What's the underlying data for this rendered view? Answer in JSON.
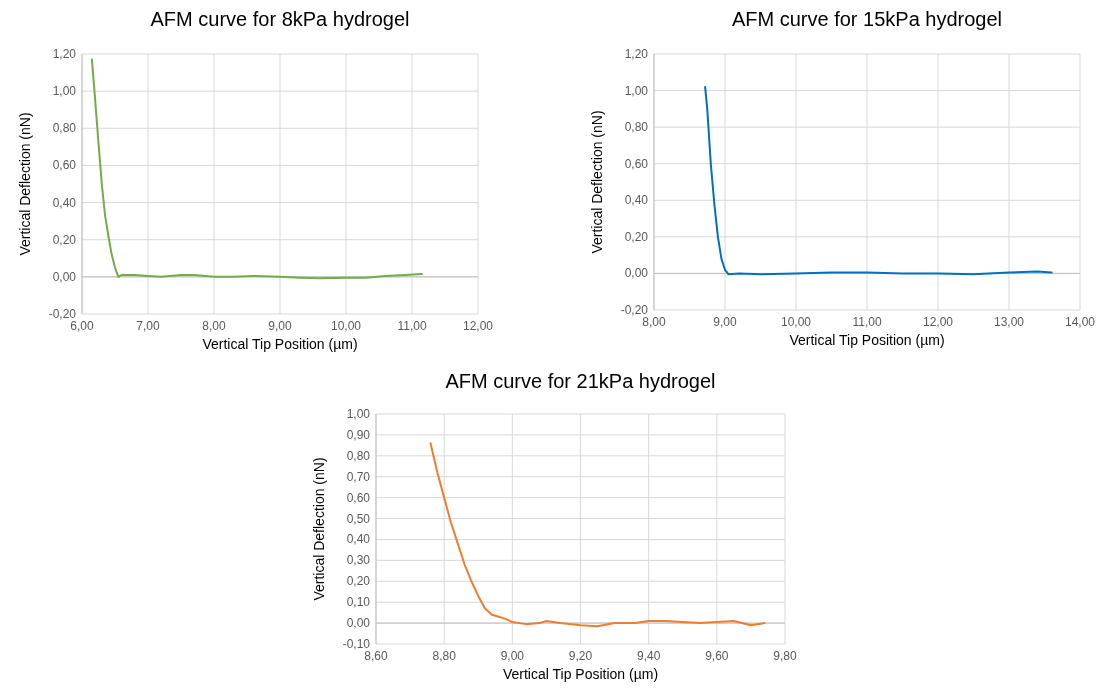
{
  "chart_data": [
    {
      "type": "line",
      "title": "AFM curve for 8kPa hydrogel",
      "xlabel": "Vertical Tip Position (µm)",
      "ylabel": "Vertical Deflection (nN)",
      "grid": true,
      "xlim": [
        6,
        12
      ],
      "ylim": [
        -0.2,
        1.2
      ],
      "xticks": [
        {
          "value": 6,
          "label": "6,00"
        },
        {
          "value": 7,
          "label": "7,00"
        },
        {
          "value": 8,
          "label": "8,00"
        },
        {
          "value": 9,
          "label": "9,00"
        },
        {
          "value": 10,
          "label": "10,00"
        },
        {
          "value": 11,
          "label": "11,00"
        },
        {
          "value": 12,
          "label": "12,00"
        }
      ],
      "yticks": [
        {
          "value": -0.2,
          "label": "-0,20"
        },
        {
          "value": 0,
          "label": "0,00"
        },
        {
          "value": 0.2,
          "label": "0,20"
        },
        {
          "value": 0.4,
          "label": "0,40"
        },
        {
          "value": 0.6,
          "label": "0,60"
        },
        {
          "value": 0.8,
          "label": "0,80"
        },
        {
          "value": 1,
          "label": "1,00"
        },
        {
          "value": 1.2,
          "label": "1,20"
        }
      ],
      "x": [
        6.15,
        6.2,
        6.25,
        6.3,
        6.35,
        6.4,
        6.45,
        6.5,
        6.55,
        6.6,
        6.8,
        7.0,
        7.2,
        7.5,
        7.7,
        8.0,
        8.3,
        8.6,
        9.0,
        9.3,
        9.6,
        10.0,
        10.3,
        10.6,
        10.9,
        11.15
      ],
      "series": [
        {
          "color": "#70ad47",
          "values": [
            1.17,
            0.95,
            0.72,
            0.5,
            0.33,
            0.22,
            0.12,
            0.05,
            0.0,
            0.01,
            0.01,
            0.005,
            0.0,
            0.01,
            0.01,
            0.0,
            0.0,
            0.005,
            0.0,
            -0.005,
            -0.008,
            -0.005,
            -0.005,
            0.005,
            0.01,
            0.015
          ]
        }
      ]
    },
    {
      "type": "line",
      "title": "AFM curve for 15kPa hydrogel",
      "xlabel": "Vertical Tip Position (µm)",
      "ylabel": "Vertical Deflection (nN)",
      "grid": true,
      "xlim": [
        8,
        14
      ],
      "ylim": [
        -0.2,
        1.2
      ],
      "xticks": [
        {
          "value": 8,
          "label": "8,00"
        },
        {
          "value": 9,
          "label": "9,00"
        },
        {
          "value": 10,
          "label": "10,00"
        },
        {
          "value": 11,
          "label": "11,00"
        },
        {
          "value": 12,
          "label": "12,00"
        },
        {
          "value": 13,
          "label": "13,00"
        },
        {
          "value": 14,
          "label": "14,00"
        }
      ],
      "yticks": [
        {
          "value": -0.2,
          "label": "-0,20"
        },
        {
          "value": 0,
          "label": "0,00"
        },
        {
          "value": 0.2,
          "label": "0,20"
        },
        {
          "value": 0.4,
          "label": "0,40"
        },
        {
          "value": 0.6,
          "label": "0,60"
        },
        {
          "value": 0.8,
          "label": "0,80"
        },
        {
          "value": 1,
          "label": "1,00"
        },
        {
          "value": 1.2,
          "label": "1,20"
        }
      ],
      "x": [
        8.72,
        8.75,
        8.8,
        8.85,
        8.9,
        8.95,
        9.0,
        9.05,
        9.2,
        9.5,
        10.0,
        10.5,
        11.0,
        11.5,
        12.0,
        12.5,
        13.0,
        13.4,
        13.6
      ],
      "series": [
        {
          "color": "#0070c0",
          "values": [
            1.02,
            0.9,
            0.6,
            0.38,
            0.2,
            0.08,
            0.02,
            -0.005,
            0.0,
            -0.005,
            0.0,
            0.005,
            0.005,
            0.0,
            0.0,
            -0.005,
            0.005,
            0.01,
            0.005
          ]
        }
      ]
    },
    {
      "type": "line",
      "title": "AFM curve for 21kPa hydrogel",
      "xlabel": "Vertical Tip Position (µm)",
      "ylabel": "Vertical Deflection (nN)",
      "grid": true,
      "xlim": [
        8.6,
        9.8
      ],
      "ylim": [
        -0.1,
        1
      ],
      "xticks": [
        {
          "value": 8.6,
          "label": "8,60"
        },
        {
          "value": 8.8,
          "label": "8,80"
        },
        {
          "value": 9,
          "label": "9,00"
        },
        {
          "value": 9.2,
          "label": "9,20"
        },
        {
          "value": 9.4,
          "label": "9,40"
        },
        {
          "value": 9.6,
          "label": "9,60"
        },
        {
          "value": 9.8,
          "label": "9,80"
        }
      ],
      "yticks": [
        {
          "value": -0.1,
          "label": "-0,10"
        },
        {
          "value": 0,
          "label": "0,00"
        },
        {
          "value": 0.1,
          "label": "0,10"
        },
        {
          "value": 0.2,
          "label": "0,20"
        },
        {
          "value": 0.3,
          "label": "0,30"
        },
        {
          "value": 0.4,
          "label": "0,40"
        },
        {
          "value": 0.5,
          "label": "0,50"
        },
        {
          "value": 0.6,
          "label": "0,60"
        },
        {
          "value": 0.7,
          "label": "0,70"
        },
        {
          "value": 0.8,
          "label": "0,80"
        },
        {
          "value": 0.9,
          "label": "0,90"
        },
        {
          "value": 1,
          "label": "1,00"
        }
      ],
      "x": [
        8.76,
        8.78,
        8.8,
        8.82,
        8.84,
        8.86,
        8.88,
        8.9,
        8.92,
        8.94,
        8.96,
        8.98,
        9.0,
        9.04,
        9.08,
        9.1,
        9.14,
        9.2,
        9.25,
        9.3,
        9.36,
        9.4,
        9.45,
        9.5,
        9.55,
        9.6,
        9.65,
        9.7,
        9.74
      ],
      "series": [
        {
          "color": "#ed7d31",
          "values": [
            0.86,
            0.72,
            0.6,
            0.48,
            0.38,
            0.28,
            0.2,
            0.13,
            0.07,
            0.04,
            0.03,
            0.02,
            0.005,
            -0.005,
            0.0,
            0.01,
            0.0,
            -0.01,
            -0.015,
            0.0,
            0.0,
            0.01,
            0.01,
            0.005,
            0.0,
            0.005,
            0.01,
            -0.01,
            0.0
          ]
        }
      ]
    }
  ]
}
